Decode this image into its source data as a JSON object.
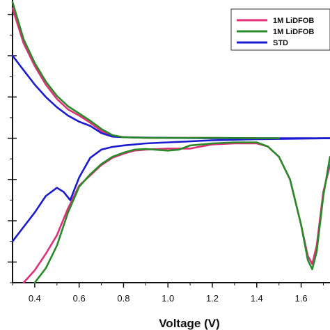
{
  "chart_data": {
    "type": "line",
    "title": "",
    "xlabel": "Voltage (V)",
    "ylabel": "",
    "xlim": [
      0.3,
      1.73
    ],
    "ylim": [
      -7.0,
      6.7
    ],
    "x_ticks": [
      0.4,
      0.6,
      0.8,
      1.0,
      1.2,
      1.4,
      1.6
    ],
    "x_tick_labels": [
      "0.4",
      "0.6",
      "0.8",
      "1.0",
      "1.2",
      "1.4",
      "1.6"
    ],
    "y_ticks": [
      -6,
      -4,
      -2,
      0,
      2,
      4,
      6
    ],
    "grid": false,
    "legend_position": "top-right",
    "series": [
      {
        "name": "1M LiDFOB",
        "color": "#e0307a",
        "points": [
          [
            0.3,
            6.3
          ],
          [
            0.35,
            4.6
          ],
          [
            0.4,
            3.5
          ],
          [
            0.45,
            2.6
          ],
          [
            0.5,
            1.9
          ],
          [
            0.55,
            1.4
          ],
          [
            0.6,
            1.0
          ],
          [
            0.65,
            0.7
          ],
          [
            0.7,
            0.35
          ],
          [
            0.75,
            0.15
          ],
          [
            0.8,
            0.05
          ],
          [
            0.9,
            0.0
          ],
          [
            1.0,
            0.0
          ],
          [
            1.2,
            0.0
          ],
          [
            1.4,
            0.0
          ],
          [
            1.4,
            0.0
          ],
          [
            1.2,
            0.0
          ],
          [
            1.0,
            0.0
          ],
          [
            1.73,
            0.0
          ]
        ],
        "segments": [
          [
            [
              0.3,
              6.3
            ],
            [
              0.35,
              4.6
            ],
            [
              0.4,
              3.5
            ],
            [
              0.45,
              2.6
            ],
            [
              0.5,
              1.9
            ],
            [
              0.55,
              1.4
            ],
            [
              0.6,
              1.1
            ],
            [
              0.65,
              0.75
            ],
            [
              0.7,
              0.35
            ],
            [
              0.75,
              0.12
            ],
            [
              0.8,
              0.05
            ],
            [
              0.9,
              0.02
            ],
            [
              1.2,
              0.02
            ],
            [
              1.4,
              0.0
            ]
          ],
          [
            [
              0.35,
              -7.0
            ],
            [
              0.4,
              -6.4
            ],
            [
              0.45,
              -5.6
            ],
            [
              0.5,
              -4.7
            ],
            [
              0.55,
              -3.4
            ],
            [
              0.6,
              -2.3
            ],
            [
              0.65,
              -1.8
            ],
            [
              0.7,
              -1.3
            ],
            [
              0.75,
              -0.95
            ],
            [
              0.8,
              -0.75
            ],
            [
              0.85,
              -0.6
            ],
            [
              0.9,
              -0.55
            ],
            [
              1.0,
              -0.5
            ],
            [
              1.1,
              -0.5
            ],
            [
              1.2,
              -0.3
            ],
            [
              1.3,
              -0.25
            ],
            [
              1.4,
              -0.25
            ],
            [
              1.45,
              -0.4
            ],
            [
              1.5,
              -0.9
            ],
            [
              1.55,
              -2.0
            ],
            [
              1.6,
              -4.2
            ],
            [
              1.63,
              -5.7
            ],
            [
              1.65,
              -6.1
            ],
            [
              1.67,
              -5.2
            ],
            [
              1.7,
              -2.6
            ],
            [
              1.73,
              -1.3
            ]
          ]
        ]
      },
      {
        "name": "1M LiDFOB",
        "color": "#2a8a2a",
        "segments": [
          [
            [
              0.3,
              6.6
            ],
            [
              0.35,
              4.8
            ],
            [
              0.4,
              3.65
            ],
            [
              0.45,
              2.75
            ],
            [
              0.5,
              2.05
            ],
            [
              0.55,
              1.55
            ],
            [
              0.6,
              1.2
            ],
            [
              0.65,
              0.85
            ],
            [
              0.7,
              0.45
            ],
            [
              0.75,
              0.15
            ],
            [
              0.8,
              0.05
            ],
            [
              0.9,
              0.02
            ],
            [
              1.2,
              0.02
            ],
            [
              1.4,
              0.0
            ],
            [
              1.5,
              0.0
            ]
          ],
          [
            [
              0.4,
              -7.0
            ],
            [
              0.45,
              -6.3
            ],
            [
              0.5,
              -5.2
            ],
            [
              0.55,
              -3.6
            ],
            [
              0.6,
              -2.35
            ],
            [
              0.65,
              -1.75
            ],
            [
              0.7,
              -1.25
            ],
            [
              0.75,
              -0.9
            ],
            [
              0.8,
              -0.7
            ],
            [
              0.85,
              -0.55
            ],
            [
              0.9,
              -0.52
            ],
            [
              1.0,
              -0.6
            ],
            [
              1.05,
              -0.55
            ],
            [
              1.1,
              -0.35
            ],
            [
              1.2,
              -0.25
            ],
            [
              1.3,
              -0.2
            ],
            [
              1.4,
              -0.2
            ],
            [
              1.45,
              -0.4
            ],
            [
              1.5,
              -0.9
            ],
            [
              1.55,
              -2.0
            ],
            [
              1.6,
              -4.2
            ],
            [
              1.63,
              -5.9
            ],
            [
              1.65,
              -6.35
            ],
            [
              1.67,
              -5.5
            ],
            [
              1.7,
              -2.8
            ],
            [
              1.73,
              -0.9
            ]
          ]
        ]
      },
      {
        "name": "STD",
        "color": "#1a1ad0",
        "segments": [
          [
            [
              0.3,
              4.0
            ],
            [
              0.35,
              3.3
            ],
            [
              0.4,
              2.6
            ],
            [
              0.45,
              2.0
            ],
            [
              0.5,
              1.5
            ],
            [
              0.55,
              1.1
            ],
            [
              0.6,
              0.8
            ],
            [
              0.65,
              0.6
            ],
            [
              0.7,
              0.25
            ],
            [
              0.75,
              0.08
            ],
            [
              0.8,
              0.05
            ],
            [
              0.9,
              0.03
            ],
            [
              1.0,
              0.02
            ],
            [
              1.2,
              0.0
            ],
            [
              1.4,
              0.0
            ],
            [
              1.73,
              0.0
            ]
          ],
          [
            [
              0.3,
              -5.0
            ],
            [
              0.35,
              -4.3
            ],
            [
              0.4,
              -3.6
            ],
            [
              0.45,
              -2.8
            ],
            [
              0.5,
              -2.4
            ],
            [
              0.53,
              -2.6
            ],
            [
              0.56,
              -3.0
            ],
            [
              0.6,
              -1.9
            ],
            [
              0.65,
              -0.95
            ],
            [
              0.7,
              -0.55
            ],
            [
              0.75,
              -0.42
            ],
            [
              0.8,
              -0.35
            ],
            [
              0.9,
              -0.25
            ],
            [
              1.0,
              -0.2
            ],
            [
              1.2,
              -0.1
            ],
            [
              1.4,
              -0.05
            ],
            [
              1.73,
              0.0
            ]
          ]
        ]
      }
    ]
  }
}
